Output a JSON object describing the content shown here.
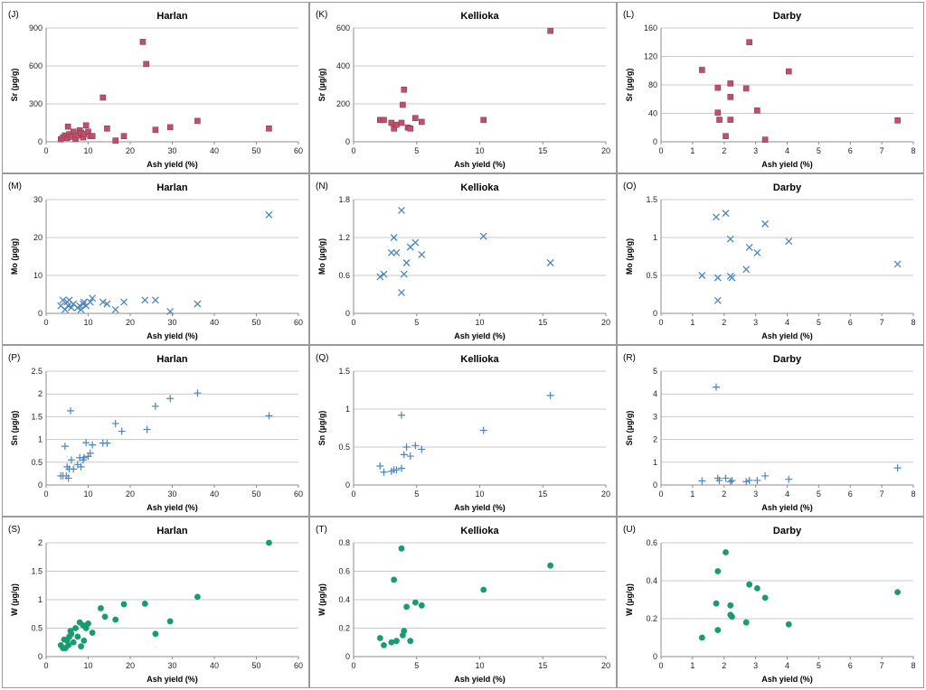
{
  "chart_data": [
    {
      "id": "J",
      "panel_label": "(J)",
      "title": "Harlan",
      "type": "scatter",
      "marker": "square",
      "color": "#c0506a",
      "xlabel": "Ash yield (%)",
      "ylabel": "Sr (µg/g)",
      "xlim": [
        0,
        60
      ],
      "xticks": [
        0,
        10,
        20,
        30,
        40,
        50,
        60
      ],
      "ylim": [
        0,
        900
      ],
      "yticks": [
        0,
        300,
        600,
        900
      ],
      "points": [
        [
          3.5,
          20
        ],
        [
          4,
          35
        ],
        [
          4.5,
          50
        ],
        [
          5,
          30
        ],
        [
          5.2,
          120
        ],
        [
          5.5,
          60
        ],
        [
          6,
          40
        ],
        [
          6.5,
          80
        ],
        [
          7,
          25
        ],
        [
          7.5,
          50
        ],
        [
          8,
          90
        ],
        [
          8.3,
          70
        ],
        [
          8.8,
          35
        ],
        [
          9,
          60
        ],
        [
          9.5,
          130
        ],
        [
          10,
          80
        ],
        [
          10.5,
          45
        ],
        [
          11,
          45
        ],
        [
          13.5,
          350
        ],
        [
          14.5,
          105
        ],
        [
          16.5,
          10
        ],
        [
          18.5,
          45
        ],
        [
          23,
          790
        ],
        [
          23.8,
          615
        ],
        [
          26,
          95
        ],
        [
          29.5,
          115
        ],
        [
          36,
          165
        ],
        [
          53,
          105
        ]
      ]
    },
    {
      "id": "K",
      "panel_label": "(K)",
      "title": "Kellioka",
      "type": "scatter",
      "marker": "square",
      "color": "#c0506a",
      "xlabel": "Ash yield (%)",
      "ylabel": "Sr (µg/g)",
      "xlim": [
        0,
        20
      ],
      "xticks": [
        0,
        5,
        10,
        15,
        20
      ],
      "ylim": [
        0,
        600
      ],
      "yticks": [
        0,
        200,
        400,
        600
      ],
      "points": [
        [
          2.1,
          115
        ],
        [
          2.4,
          115
        ],
        [
          3.0,
          100
        ],
        [
          3.2,
          70
        ],
        [
          3.4,
          90
        ],
        [
          3.8,
          100
        ],
        [
          3.9,
          195
        ],
        [
          4.0,
          275
        ],
        [
          4.3,
          75
        ],
        [
          4.5,
          70
        ],
        [
          4.9,
          125
        ],
        [
          5.4,
          105
        ],
        [
          10.3,
          115
        ],
        [
          15.6,
          585
        ]
      ]
    },
    {
      "id": "L",
      "panel_label": "(L)",
      "title": "Darby",
      "type": "scatter",
      "marker": "square",
      "color": "#c0506a",
      "xlabel": "Ash yield (%)",
      "ylabel": "Sr (µg/g)",
      "xlim": [
        0,
        8
      ],
      "xticks": [
        0,
        1,
        2,
        3,
        4,
        5,
        6,
        7,
        8
      ],
      "ylim": [
        0,
        160
      ],
      "yticks": [
        0,
        40,
        80,
        120,
        160
      ],
      "points": [
        [
          1.3,
          101
        ],
        [
          1.8,
          76
        ],
        [
          1.8,
          41
        ],
        [
          1.85,
          31
        ],
        [
          2.05,
          8
        ],
        [
          2.2,
          82
        ],
        [
          2.2,
          63
        ],
        [
          2.2,
          31
        ],
        [
          2.7,
          75
        ],
        [
          2.8,
          140
        ],
        [
          3.05,
          44
        ],
        [
          3.3,
          3
        ],
        [
          4.05,
          99
        ],
        [
          7.5,
          30
        ]
      ]
    },
    {
      "id": "M",
      "panel_label": "(M)",
      "title": "Harlan",
      "type": "scatter",
      "marker": "x",
      "color": "#4a86c5",
      "xlabel": "Ash yield (%)",
      "ylabel": "Mo (µg/g)",
      "xlim": [
        0,
        60
      ],
      "xticks": [
        0,
        10,
        20,
        30,
        40,
        50,
        60
      ],
      "ylim": [
        0,
        30
      ],
      "yticks": [
        0,
        10,
        20,
        30
      ],
      "points": [
        [
          3.5,
          2
        ],
        [
          4,
          3.5
        ],
        [
          4.5,
          1
        ],
        [
          5,
          3
        ],
        [
          5.2,
          2
        ],
        [
          5.5,
          3.5
        ],
        [
          6,
          1.5
        ],
        [
          6.5,
          2.5
        ],
        [
          7.5,
          1.5
        ],
        [
          8,
          2
        ],
        [
          8.3,
          1
        ],
        [
          8.8,
          2.5
        ],
        [
          9,
          3
        ],
        [
          9.5,
          2
        ],
        [
          10.5,
          3
        ],
        [
          11,
          4
        ],
        [
          13.5,
          3
        ],
        [
          14.5,
          2.5
        ],
        [
          16.5,
          1
        ],
        [
          18.5,
          3
        ],
        [
          23.5,
          3.5
        ],
        [
          26,
          3.5
        ],
        [
          29.5,
          0.5
        ],
        [
          36,
          2.5
        ],
        [
          53,
          26
        ]
      ]
    },
    {
      "id": "N",
      "panel_label": "(N)",
      "title": "Kellioka",
      "type": "scatter",
      "marker": "x",
      "color": "#4a86c5",
      "xlabel": "Ash yield (%)",
      "ylabel": "Mo (µg/g)",
      "xlim": [
        0,
        20
      ],
      "xticks": [
        0,
        5,
        10,
        15,
        20
      ],
      "ylim": [
        0,
        1.8
      ],
      "yticks": [
        "0",
        "0.6",
        "1.2",
        "1.8"
      ],
      "points": [
        [
          2.1,
          0.58
        ],
        [
          2.4,
          0.62
        ],
        [
          3.0,
          0.96
        ],
        [
          3.2,
          1.2
        ],
        [
          3.4,
          0.96
        ],
        [
          3.8,
          1.63
        ],
        [
          3.8,
          0.33
        ],
        [
          4.0,
          0.62
        ],
        [
          4.2,
          0.8
        ],
        [
          4.5,
          1.05
        ],
        [
          4.9,
          1.12
        ],
        [
          5.4,
          0.93
        ],
        [
          10.3,
          1.22
        ],
        [
          15.6,
          0.8
        ]
      ]
    },
    {
      "id": "O",
      "panel_label": "(O)",
      "title": "Darby",
      "type": "scatter",
      "marker": "x",
      "color": "#4a86c5",
      "xlabel": "Ash yield (%)",
      "ylabel": "Mo (µg/g)",
      "xlim": [
        0,
        8
      ],
      "xticks": [
        0,
        1,
        2,
        3,
        4,
        5,
        6,
        7,
        8
      ],
      "ylim": [
        0,
        1.5
      ],
      "yticks": [
        "0",
        "0.5",
        "1",
        "1.5"
      ],
      "points": [
        [
          1.3,
          0.5
        ],
        [
          1.75,
          1.27
        ],
        [
          1.8,
          0.47
        ],
        [
          1.8,
          0.17
        ],
        [
          2.05,
          1.32
        ],
        [
          2.2,
          0.98
        ],
        [
          2.2,
          0.49
        ],
        [
          2.25,
          0.47
        ],
        [
          2.7,
          0.58
        ],
        [
          2.8,
          0.87
        ],
        [
          3.05,
          0.8
        ],
        [
          3.3,
          1.18
        ],
        [
          4.05,
          0.95
        ],
        [
          7.5,
          0.65
        ]
      ]
    },
    {
      "id": "P",
      "panel_label": "(P)",
      "title": "Harlan",
      "type": "scatter",
      "marker": "plus",
      "color": "#4a86c5",
      "xlabel": "Ash yield (%)",
      "ylabel": "Sn (µg/g)",
      "xlim": [
        0,
        60
      ],
      "xticks": [
        0,
        10,
        20,
        30,
        40,
        50,
        60
      ],
      "ylim": [
        0,
        2.5
      ],
      "yticks": [
        "0",
        "0.5",
        "1",
        "1.5",
        "2",
        "2.5"
      ],
      "points": [
        [
          3.5,
          0.2
        ],
        [
          4,
          0.2
        ],
        [
          4.5,
          0.85
        ],
        [
          4.8,
          0.2
        ],
        [
          5,
          0.4
        ],
        [
          5.3,
          0.15
        ],
        [
          5.5,
          0.35
        ],
        [
          5.8,
          1.63
        ],
        [
          6,
          0.55
        ],
        [
          6.5,
          0.35
        ],
        [
          7.5,
          0.45
        ],
        [
          8,
          0.6
        ],
        [
          8.3,
          0.4
        ],
        [
          8.8,
          0.55
        ],
        [
          9,
          0.6
        ],
        [
          9.5,
          0.93
        ],
        [
          10,
          0.63
        ],
        [
          10.5,
          0.7
        ],
        [
          11,
          0.88
        ],
        [
          13.5,
          0.92
        ],
        [
          14.5,
          0.92
        ],
        [
          16.5,
          1.35
        ],
        [
          18,
          1.18
        ],
        [
          24,
          1.22
        ],
        [
          26,
          1.73
        ],
        [
          29.5,
          1.9
        ],
        [
          36,
          2.02
        ],
        [
          53,
          1.52
        ]
      ]
    },
    {
      "id": "Q",
      "panel_label": "(Q)",
      "title": "Kellioka",
      "type": "scatter",
      "marker": "plus",
      "color": "#4a86c5",
      "xlabel": "Ash yield (%)",
      "ylabel": "Sn (µg/g)",
      "xlim": [
        0,
        20
      ],
      "xticks": [
        0,
        5,
        10,
        15,
        20
      ],
      "ylim": [
        0,
        1.5
      ],
      "yticks": [
        "0",
        "0.5",
        "1",
        "1.5"
      ],
      "points": [
        [
          2.1,
          0.25
        ],
        [
          2.4,
          0.17
        ],
        [
          3.0,
          0.18
        ],
        [
          3.2,
          0.2
        ],
        [
          3.4,
          0.2
        ],
        [
          3.8,
          0.22
        ],
        [
          3.8,
          0.92
        ],
        [
          4.0,
          0.4
        ],
        [
          4.2,
          0.5
        ],
        [
          4.5,
          0.38
        ],
        [
          4.9,
          0.52
        ],
        [
          5.4,
          0.47
        ],
        [
          10.3,
          0.72
        ],
        [
          15.6,
          1.18
        ]
      ]
    },
    {
      "id": "R",
      "panel_label": "(R)",
      "title": "Darby",
      "type": "scatter",
      "marker": "plus",
      "color": "#4a86c5",
      "xlabel": "Ash yield (%)",
      "ylabel": "Sn (µg/g)",
      "xlim": [
        0,
        8
      ],
      "xticks": [
        0,
        1,
        2,
        3,
        4,
        5,
        6,
        7,
        8
      ],
      "ylim": [
        0,
        5
      ],
      "yticks": [
        0,
        1,
        2,
        3,
        4,
        5
      ],
      "points": [
        [
          1.3,
          0.18
        ],
        [
          1.75,
          4.3
        ],
        [
          1.8,
          0.3
        ],
        [
          1.85,
          0.2
        ],
        [
          2.05,
          0.3
        ],
        [
          2.2,
          0.15
        ],
        [
          2.25,
          0.2
        ],
        [
          2.7,
          0.15
        ],
        [
          2.8,
          0.2
        ],
        [
          3.05,
          0.2
        ],
        [
          3.3,
          0.4
        ],
        [
          4.05,
          0.25
        ],
        [
          7.5,
          0.75
        ]
      ]
    },
    {
      "id": "S",
      "panel_label": "(S)",
      "title": "Harlan",
      "type": "scatter",
      "marker": "circle",
      "color": "#169c6e",
      "xlabel": "Ash yield (%)",
      "ylabel": "W (µg/g)",
      "xlim": [
        0,
        60
      ],
      "xticks": [
        0,
        10,
        20,
        30,
        40,
        50,
        60
      ],
      "ylim": [
        0,
        2
      ],
      "yticks": [
        "0",
        "0.5",
        "1",
        "1.5",
        "2"
      ],
      "points": [
        [
          3.5,
          0.2
        ],
        [
          4,
          0.15
        ],
        [
          4.3,
          0.3
        ],
        [
          4.6,
          0.15
        ],
        [
          5,
          0.28
        ],
        [
          5.3,
          0.2
        ],
        [
          5.5,
          0.35
        ],
        [
          5.8,
          0.45
        ],
        [
          6,
          0.4
        ],
        [
          6.5,
          0.25
        ],
        [
          7,
          0.5
        ],
        [
          7.5,
          0.35
        ],
        [
          8,
          0.6
        ],
        [
          8.3,
          0.18
        ],
        [
          8.8,
          0.55
        ],
        [
          9,
          0.28
        ],
        [
          9.5,
          0.5
        ],
        [
          10,
          0.58
        ],
        [
          11,
          0.42
        ],
        [
          13,
          0.85
        ],
        [
          14,
          0.7
        ],
        [
          16.5,
          0.65
        ],
        [
          18.5,
          0.92
        ],
        [
          23.5,
          0.93
        ],
        [
          26,
          0.4
        ],
        [
          29.5,
          0.62
        ],
        [
          36,
          1.05
        ],
        [
          53,
          2.0
        ]
      ]
    },
    {
      "id": "T",
      "panel_label": "(T)",
      "title": "Kellioka",
      "type": "scatter",
      "marker": "circle",
      "color": "#169c6e",
      "xlabel": "Ash yield (%)",
      "ylabel": "W (µg/g)",
      "xlim": [
        0,
        20
      ],
      "xticks": [
        0,
        5,
        10,
        15,
        20
      ],
      "ylim": [
        0,
        0.8
      ],
      "yticks": [
        "0",
        "0.2",
        "0.4",
        "0.6",
        "0.8"
      ],
      "points": [
        [
          2.1,
          0.13
        ],
        [
          2.4,
          0.08
        ],
        [
          3.0,
          0.1
        ],
        [
          3.2,
          0.54
        ],
        [
          3.4,
          0.11
        ],
        [
          3.8,
          0.76
        ],
        [
          3.9,
          0.15
        ],
        [
          4.0,
          0.18
        ],
        [
          4.2,
          0.35
        ],
        [
          4.5,
          0.11
        ],
        [
          4.9,
          0.38
        ],
        [
          5.4,
          0.36
        ],
        [
          10.3,
          0.47
        ],
        [
          15.6,
          0.64
        ]
      ]
    },
    {
      "id": "U",
      "panel_label": "(U)",
      "title": "Darby",
      "type": "scatter",
      "marker": "circle",
      "color": "#169c6e",
      "xlabel": "Ash yield (%)",
      "ylabel": "W (µg/g)",
      "xlim": [
        0,
        8
      ],
      "xticks": [
        0,
        1,
        2,
        3,
        4,
        5,
        6,
        7,
        8
      ],
      "ylim": [
        0,
        0.6
      ],
      "yticks": [
        "0",
        "0.2",
        "0.4",
        "0.6"
      ],
      "points": [
        [
          1.3,
          0.1
        ],
        [
          1.75,
          0.28
        ],
        [
          1.8,
          0.45
        ],
        [
          1.8,
          0.14
        ],
        [
          2.05,
          0.55
        ],
        [
          2.2,
          0.27
        ],
        [
          2.2,
          0.22
        ],
        [
          2.25,
          0.21
        ],
        [
          2.7,
          0.18
        ],
        [
          2.8,
          0.38
        ],
        [
          3.05,
          0.36
        ],
        [
          3.3,
          0.31
        ],
        [
          4.05,
          0.17
        ],
        [
          7.5,
          0.34
        ]
      ]
    }
  ]
}
